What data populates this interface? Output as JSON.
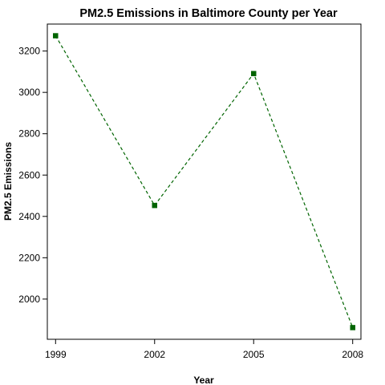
{
  "chart_data": {
    "type": "line",
    "title": "PM2.5 Emissions in Baltimore County per Year",
    "xlabel": "Year",
    "ylabel": "PM2.5 Emissions",
    "x": [
      1999,
      2002,
      2005,
      2008
    ],
    "x_tick_labels": [
      "1999",
      "2002",
      "2005",
      "2008"
    ],
    "y_ticks": [
      2000,
      2200,
      2400,
      2600,
      2800,
      3000,
      3200
    ],
    "y_tick_labels": [
      "2000",
      "2200",
      "2400",
      "2600",
      "2800",
      "3000",
      "3200"
    ],
    "xlim": [
      1998.75,
      2008.25
    ],
    "ylim": [
      1862.0,
      3274.0
    ],
    "series": [
      {
        "values": [
          3274,
          2453,
          3091,
          1862
        ],
        "color": "#006400",
        "line_style": "dashed",
        "marker": "square"
      }
    ],
    "grid": false,
    "legend": "none"
  }
}
